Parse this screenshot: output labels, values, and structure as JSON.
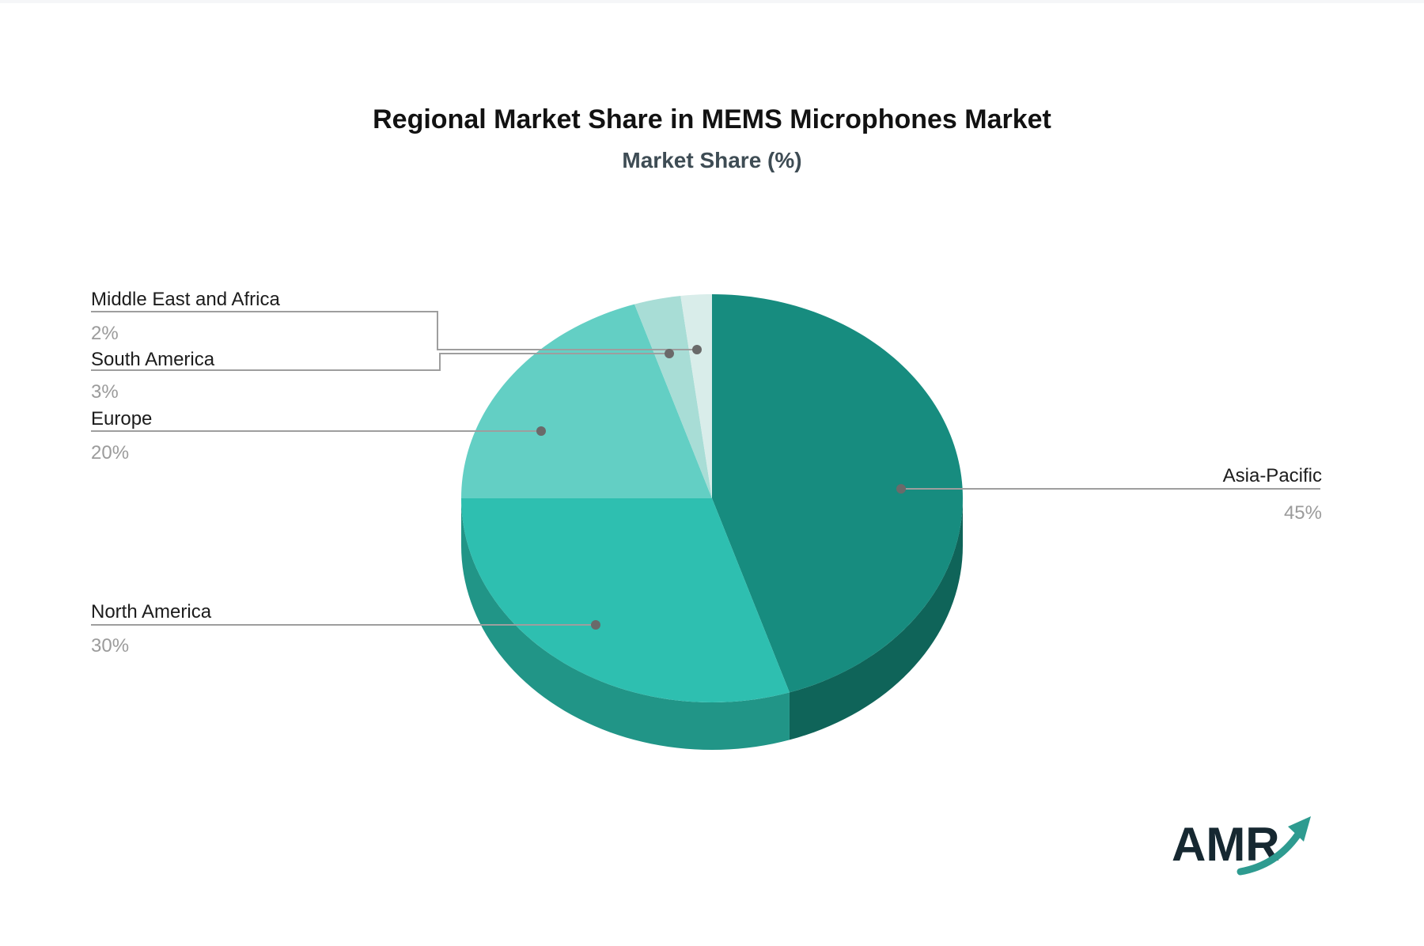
{
  "chart_data": {
    "type": "pie",
    "title": "Regional Market Share in MEMS Microphones Market",
    "subtitle": "Market Share (%)",
    "unit": "%",
    "start_angle_deg": 0,
    "direction": "clockwise",
    "legend_position": "none",
    "labels": "outside-with-leader-lines",
    "slices": [
      {
        "label": "Asia-Pacific",
        "value": 45,
        "pct": "45%",
        "color": "#178c7f",
        "side_color": "#0f6459"
      },
      {
        "label": "North America",
        "value": 30,
        "pct": "30%",
        "color": "#2ebfb0",
        "side_color": "#219587"
      },
      {
        "label": "Europe",
        "value": 20,
        "pct": "20%",
        "color": "#63cfc4",
        "side_color": "#4fb3a8"
      },
      {
        "label": "South America",
        "value": 3,
        "pct": "3%",
        "color": "#a8ddd6",
        "side_color": "#8ac4bc"
      },
      {
        "label": "Middle East and Africa",
        "value": 2,
        "pct": "2%",
        "color": "#d9edea",
        "side_color": "#bcdcd7"
      }
    ],
    "colors": {
      "label_text": "#1c1c1c",
      "pct_text": "#9b9b9b",
      "leader_line": "#9e9e9e",
      "leader_dot": "#6a6a6a"
    }
  },
  "logo": {
    "text": "AMR",
    "arrow_color": "#2e9b90"
  }
}
